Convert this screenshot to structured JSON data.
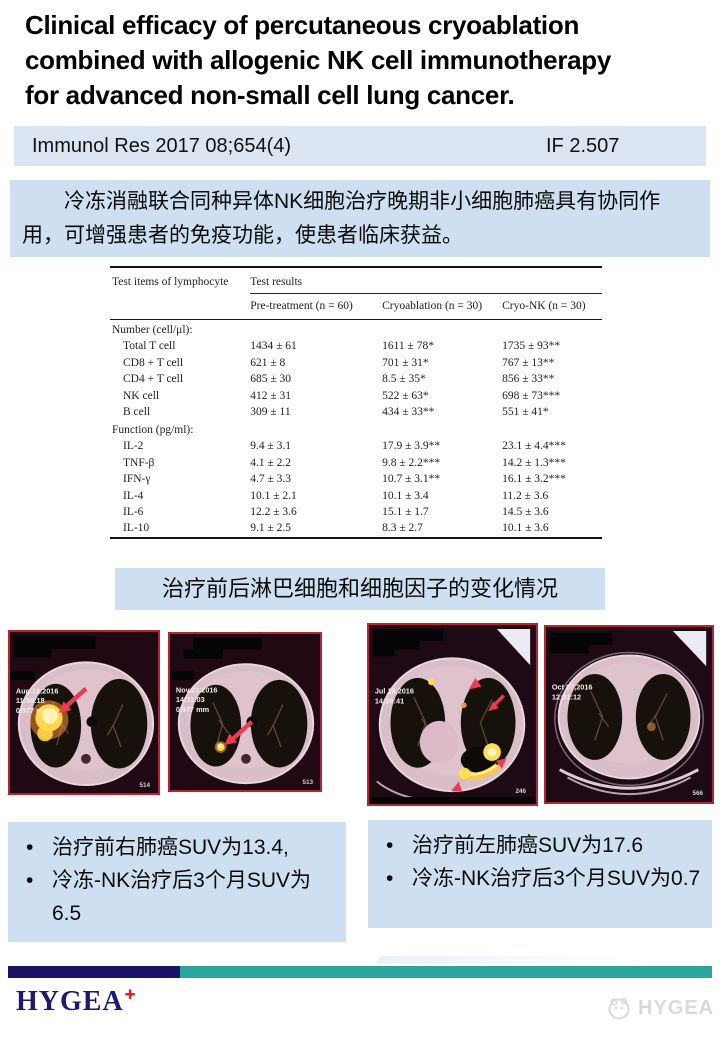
{
  "title_lines": [
    "Clinical efficacy of percutaneous cryoablation",
    "combined with allogenic NK cell immunotherapy",
    "for advanced non-small cell lung cancer."
  ],
  "journal": {
    "citation": "Immunol Res 2017 08;654(4)",
    "impact_factor": "IF 2.507"
  },
  "summary": "冷冻消融联合同种异体NK细胞治疗晚期非小细胞肺癌具有协同作用，可增强患者的免疫功能，使患者临床获益。",
  "table": {
    "col1_header": "Test items of lymphocyte",
    "group_header": "Test results",
    "columns": [
      "Pre-treatment (n = 60)",
      "Cryoablation (n = 30)",
      "Cryo-NK (n = 30)"
    ],
    "sections": [
      {
        "label": "Number (cell/μl):",
        "rows": [
          {
            "item": "Total T cell",
            "values": [
              "1434 ± 61",
              "1611 ± 78*",
              "1735 ± 93**"
            ]
          },
          {
            "item": "CD8 + T cell",
            "values": [
              "621 ± 8",
              "701 ± 31*",
              "767 ± 13**"
            ]
          },
          {
            "item": "CD4 + T cell",
            "values": [
              "685 ± 30",
              "8.5 ± 35*",
              "856 ± 33**"
            ]
          },
          {
            "item": "NK cell",
            "values": [
              "412 ± 31",
              "522 ± 63*",
              "698 ± 73***"
            ]
          },
          {
            "item": "B cell",
            "values": [
              "309 ± 11",
              "434 ± 33**",
              "551 ± 41*"
            ]
          }
        ]
      },
      {
        "label": "Function (pg/ml):",
        "rows": [
          {
            "item": "IL-2",
            "values": [
              "9.4 ± 3.1",
              "17.9 ± 3.9**",
              "23.1 ± 4.4***"
            ]
          },
          {
            "item": "TNF-β",
            "values": [
              "4.1 ± 2.2",
              "9.8 ± 2.2***",
              "14.2 ± 1.3***"
            ]
          },
          {
            "item": "IFN-γ",
            "values": [
              "4.7 ± 3.3",
              "10.7 ± 3.1**",
              "16.1 ± 3.2***"
            ]
          },
          {
            "item": "IL-4",
            "values": [
              "10.1 ± 2.1",
              "10.1 ± 3.4",
              "11.2 ± 3.6"
            ]
          },
          {
            "item": "IL-6",
            "values": [
              "12.2 ± 3.6",
              "15.1 ± 1.7",
              "14.5 ± 3.6"
            ]
          },
          {
            "item": "IL-10",
            "values": [
              "9.1 ± 2.5",
              "8.3 ± 2.7",
              "10.1 ± 3.6"
            ]
          }
        ]
      }
    ]
  },
  "table_caption": "治疗前后淋巴细胞和细胞因子的变化情况",
  "scans": [
    {
      "date": "Aug.12.2016",
      "time": "11:59:18",
      "slice_thickness": "0.977 mm",
      "slice_no": "514"
    },
    {
      "date": "Nov.23.2016",
      "time": "14:11:03",
      "slice_thickness": "0.977 mm",
      "slice_no": "513"
    },
    {
      "date": "Jul 18,2016",
      "time": "14:26:41",
      "slice_no": "246"
    },
    {
      "date": "Oct 07,2016",
      "time": "12:31:12",
      "slice_no": "566"
    }
  ],
  "notes_left": [
    "治疗前右肺癌SUV为13.4,",
    "冷冻-NK治疗后3个月SUV为6.5"
  ],
  "notes_right": [
    "治疗前左肺癌SUV为17.6",
    "冷冻-NK治疗后3个月SUV为0.7"
  ],
  "footer": {
    "logo": "HYGEA",
    "logo_mark": "✚",
    "watermark": "HYGEA"
  },
  "colors": {
    "journal_bar_bg": "#dbe5f1",
    "summary_bg": "#cddff0",
    "navy_bar": "#1b1464",
    "teal_bar": "#2aa49c",
    "logo_navy": "#1c1a6e",
    "logo_red": "#e2211c",
    "scan_frame_red": "#b52433",
    "hotspot_yellow": "#ffd84d",
    "arrow_red": "#ea3b55"
  }
}
